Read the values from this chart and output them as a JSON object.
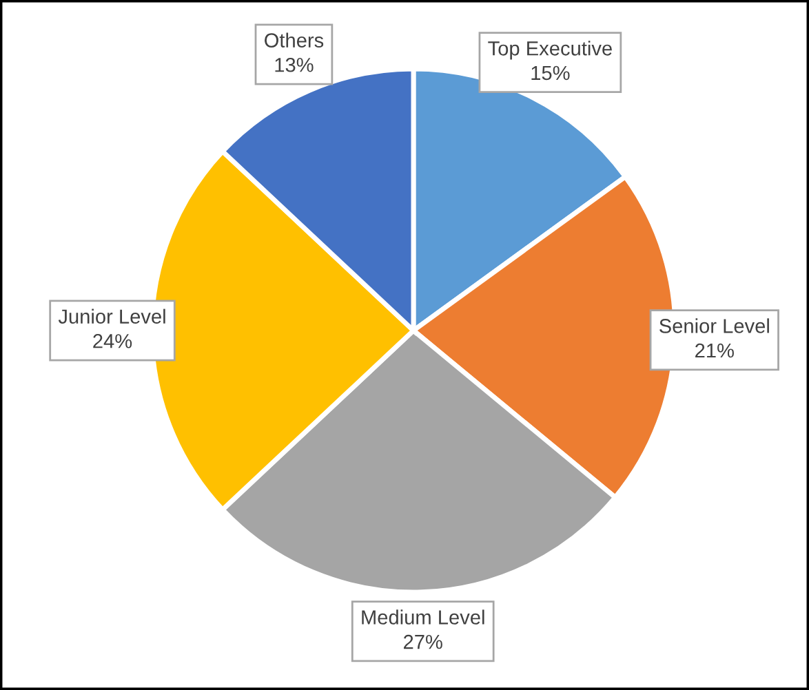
{
  "chart_data": {
    "type": "pie",
    "categories": [
      "Top Executive",
      "Senior Level",
      "Medium Level",
      "Junior Level",
      "Others"
    ],
    "values": [
      15,
      21,
      27,
      24,
      13
    ],
    "value_labels": [
      "15%",
      "21%",
      "27%",
      "24%",
      "13%"
    ],
    "colors": [
      "#5b9bd5",
      "#ed7d31",
      "#a5a5a5",
      "#ffc000",
      "#4472c4"
    ],
    "legend": false
  }
}
